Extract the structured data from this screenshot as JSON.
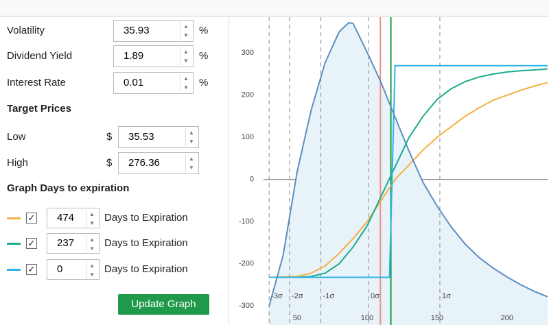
{
  "form": {
    "fields": [
      {
        "label": "Volatility",
        "value": 35.93,
        "unit": "%"
      },
      {
        "label": "Dividend Yield",
        "value": 1.89,
        "unit": "%"
      },
      {
        "label": "Interest Rate",
        "value": 0.01,
        "unit": "%"
      }
    ],
    "target_prices": {
      "title": "Target Prices",
      "fields": [
        {
          "label": "Low",
          "currency": "$",
          "value": 35.53
        },
        {
          "label": "High",
          "currency": "$",
          "value": 276.36
        }
      ]
    },
    "days": {
      "title": "Graph Days to expiration",
      "rows": [
        {
          "checked": true,
          "days": 474,
          "text": "Days to Expiration"
        },
        {
          "checked": true,
          "days": 237,
          "text": "Days to Expiration"
        },
        {
          "checked": true,
          "days": 0,
          "text": "Days to Expiration"
        }
      ]
    },
    "button": "Update Graph"
  },
  "chart_data": {
    "type": "line",
    "xlim": [
      26,
      229
    ],
    "ylim": [
      -345,
      385
    ],
    "xticks": [
      50,
      100,
      150,
      200
    ],
    "yticks": [
      -300,
      -200,
      -100,
      0,
      100,
      200,
      300
    ],
    "grid": false,
    "series": [
      {
        "color": "#f5b041",
        "x": [
          30,
          50,
          60,
          70,
          80,
          90,
          100,
          110,
          120,
          130,
          140,
          150,
          160,
          170,
          180,
          190,
          200,
          210,
          220,
          229
        ],
        "values": [
          -232,
          -230,
          -222,
          -205,
          -175,
          -140,
          -100,
          -50,
          0,
          35,
          70,
          100,
          125,
          150,
          170,
          188,
          200,
          212,
          222,
          230
        ]
      },
      {
        "color": "#1aab8e",
        "x": [
          30,
          50,
          60,
          70,
          80,
          90,
          100,
          110,
          120,
          130,
          140,
          150,
          160,
          170,
          180,
          190,
          200,
          210,
          220,
          229
        ],
        "values": [
          -232,
          -232,
          -230,
          -222,
          -200,
          -160,
          -110,
          -40,
          30,
          100,
          150,
          190,
          215,
          232,
          243,
          250,
          255,
          258,
          260,
          262
        ]
      },
      {
        "color": "#2cb5e8",
        "x": [
          30,
          116,
          120,
          229
        ],
        "values": [
          -232,
          -232,
          270,
          270
        ]
      },
      {
        "color": "#5b8fc0",
        "fill": "#e8f2f9",
        "x": [
          30,
          40,
          50,
          60,
          70,
          80,
          87,
          90,
          100,
          110,
          120,
          130,
          140,
          150,
          160,
          170,
          180,
          190,
          200,
          210,
          220,
          229
        ],
        "values": [
          -300,
          -180,
          18,
          164,
          277,
          350,
          372,
          370,
          302,
          230,
          148,
          67,
          -7,
          -63,
          -112,
          -153,
          -185,
          -210,
          -231,
          -250,
          -266,
          -278
        ]
      }
    ],
    "sigma_lines": [
      {
        "x": 30,
        "label": "-3σ"
      },
      {
        "x": 44.6,
        "label": "-2σ"
      },
      {
        "x": 67,
        "label": "-1σ"
      },
      {
        "x": 101,
        "label": "0σ"
      },
      {
        "x": 152,
        "label": "1σ"
      }
    ],
    "vlines": [
      {
        "x": 109.5,
        "color": "#f08c8c"
      },
      {
        "x": 117,
        "color": "#1a9c3e"
      }
    ]
  }
}
